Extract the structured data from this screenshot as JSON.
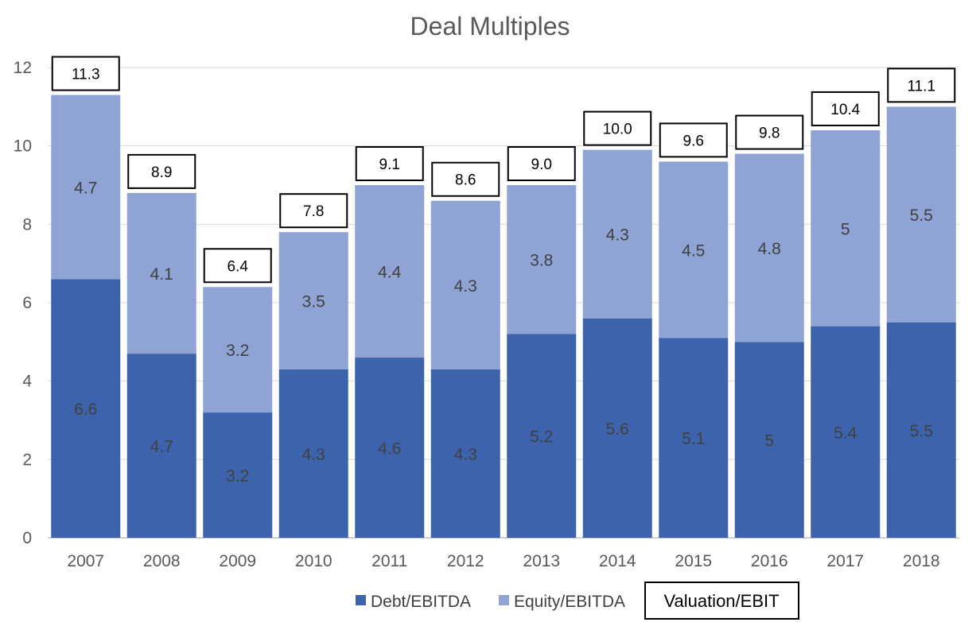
{
  "chart_data": {
    "type": "bar",
    "stacked": true,
    "title": "Deal Multiples",
    "categories": [
      "2007",
      "2008",
      "2009",
      "2010",
      "2011",
      "2012",
      "2013",
      "2014",
      "2015",
      "2016",
      "2017",
      "2018"
    ],
    "series": [
      {
        "name": "Debt/EBITDA",
        "values": [
          6.6,
          4.7,
          3.2,
          4.3,
          4.6,
          4.3,
          5.2,
          5.6,
          5.1,
          5,
          5.4,
          5.5
        ],
        "labels": [
          "6.6",
          "4.7",
          "3.2",
          "4.3",
          "4.6",
          "4.3",
          "5.2",
          "5.6",
          "5.1",
          "5",
          "5.4",
          "5.5"
        ]
      },
      {
        "name": "Equity/EBITDA",
        "values": [
          4.7,
          4.1,
          3.2,
          3.5,
          4.4,
          4.3,
          3.8,
          4.3,
          4.5,
          4.8,
          5,
          5.5
        ],
        "labels": [
          "4.7",
          "4.1",
          "3.2",
          "3.5",
          "4.4",
          "4.3",
          "3.8",
          "4.3",
          "4.5",
          "4.8",
          "5",
          "5.5"
        ]
      }
    ],
    "totals": {
      "name": "Valuation/EBIT",
      "labels": [
        "11.3",
        "8.9",
        "6.4",
        "7.8",
        "9.1",
        "8.6",
        "9.0",
        "10.0",
        "9.6",
        "9.8",
        "10.4",
        "11.1"
      ]
    },
    "yticks": [
      "0",
      "2",
      "4",
      "6",
      "8",
      "10",
      "12"
    ],
    "ylim": [
      0,
      12
    ],
    "grid": true,
    "legend": "bottom",
    "colors": {
      "debt": "#3c63ac",
      "equity": "#8fa3d4",
      "grid": "#d9d9d9",
      "axis": "#bfbfbf"
    }
  }
}
